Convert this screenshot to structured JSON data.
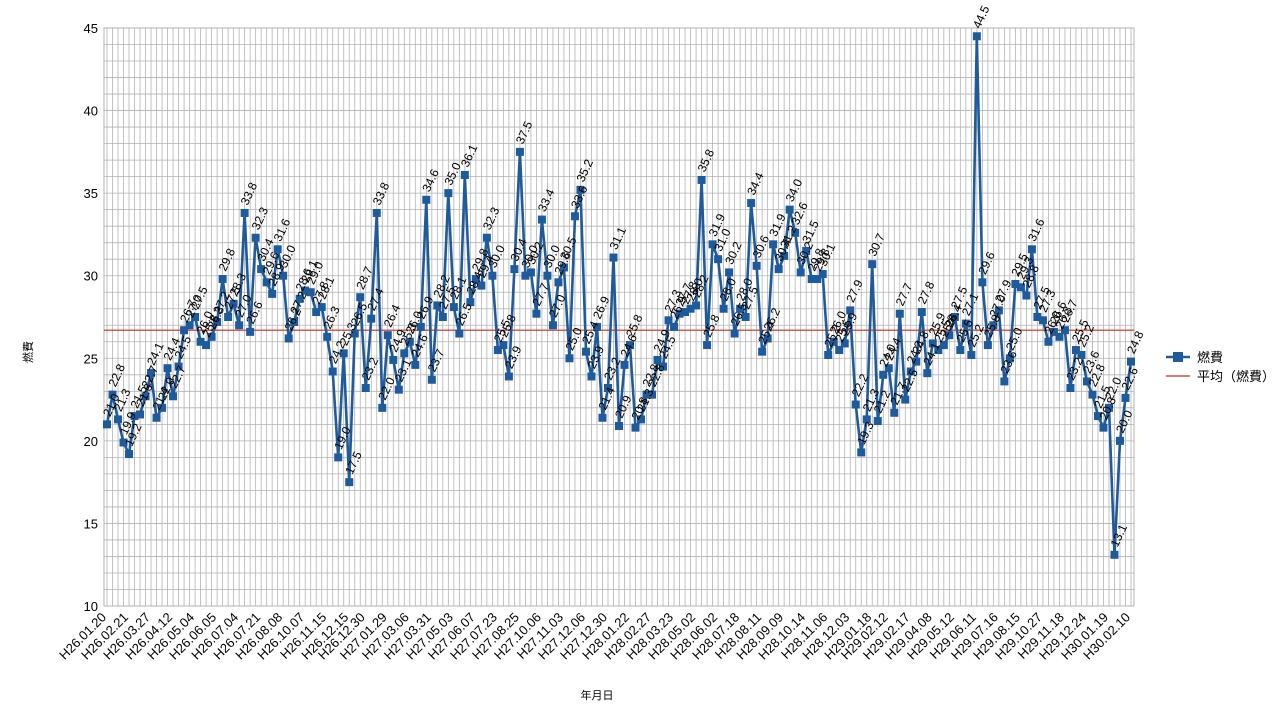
{
  "chart_data": {
    "type": "line",
    "xlabel": "年月日",
    "ylabel": "燃費",
    "ylim": [
      10,
      45
    ],
    "yticks": [
      10,
      15,
      20,
      25,
      30,
      35,
      40,
      45
    ],
    "grid": true,
    "legend_position": "right",
    "x_tick_labels": [
      "H26.01.20",
      "H26.02.21",
      "H26.03.27",
      "H26.04.12",
      "H26.05.04",
      "H26.06.05",
      "H26.07.04",
      "H26.07.21",
      "H26.08.08",
      "H26.10.07",
      "H26.11.15",
      "H26.12.15",
      "H26.12.30",
      "H27.01.29",
      "H27.03.06",
      "H27.03.31",
      "H27.05.03",
      "H27.06.07",
      "H27.07.23",
      "H27.08.25",
      "H27.10.06",
      "H27.11.03",
      "H27.12.06",
      "H27.12.30",
      "H28.01.22",
      "H28.02.27",
      "H28.03.23",
      "H28.05.02",
      "H28.06.02",
      "H28.07.18",
      "H28.08.11",
      "H28.09.09",
      "H28.10.14",
      "H28.11.06",
      "H28.12.03",
      "H29.01.18",
      "H29.02.12",
      "H29.02.17",
      "H29.04.08",
      "H29.05.12",
      "H29.06.11",
      "H29.07.16",
      "H29.08.15",
      "H29.10.27",
      "H29.11.18",
      "H29.12.24",
      "H30.01.19",
      "H30.02.10"
    ],
    "series": [
      {
        "name": "燃費",
        "color": "#1f5b9a",
        "marker": "square",
        "values": [
          21.0,
          22.8,
          21.3,
          19.9,
          19.2,
          21.5,
          21.6,
          22.7,
          24.1,
          21.4,
          22.0,
          24.4,
          22.7,
          24.5,
          26.7,
          27.0,
          27.5,
          26.0,
          25.8,
          26.3,
          27.2,
          29.8,
          27.5,
          28.3,
          27.0,
          33.8,
          26.6,
          32.3,
          30.4,
          29.6,
          28.9,
          31.6,
          30.0,
          26.2,
          27.2,
          28.6,
          29.1,
          29.0,
          27.8,
          28.1,
          26.3,
          24.2,
          19.0,
          25.3,
          17.5,
          26.5,
          28.7,
          23.2,
          27.4,
          33.8,
          22.0,
          26.4,
          24.9,
          23.1,
          25.3,
          26.0,
          24.6,
          26.9,
          34.6,
          23.7,
          28.2,
          27.5,
          35.0,
          28.1,
          26.5,
          36.1,
          28.4,
          29.8,
          29.4,
          32.3,
          30.0,
          25.5,
          25.8,
          23.9,
          30.4,
          37.5,
          30.0,
          30.2,
          27.7,
          33.4,
          30.0,
          27.0,
          29.6,
          30.5,
          25.0,
          33.6,
          35.2,
          25.4,
          23.9,
          26.9,
          21.4,
          23.2,
          31.1,
          20.9,
          24.6,
          25.8,
          20.8,
          21.3,
          22.8,
          22.8,
          24.9,
          24.5,
          27.3,
          26.9,
          27.7,
          27.8,
          28.0,
          28.2,
          35.8,
          25.8,
          31.9,
          31.0,
          28.0,
          30.2,
          26.5,
          28.0,
          27.5,
          34.4,
          30.6,
          25.4,
          26.2,
          31.9,
          30.4,
          31.2,
          34.0,
          32.6,
          30.2,
          31.5,
          29.8,
          29.8,
          30.1,
          25.2,
          26.0,
          25.5,
          25.9,
          27.9,
          22.2,
          19.3,
          21.3,
          30.7,
          21.2,
          24.0,
          24.4,
          21.7,
          27.7,
          22.5,
          24.2,
          24.8,
          27.8,
          24.1,
          25.9,
          25.5,
          25.8,
          26.4,
          27.5,
          25.5,
          27.1,
          25.2,
          44.5,
          29.6,
          25.8,
          27.0,
          27.9,
          23.6,
          25.0,
          29.5,
          29.3,
          28.8,
          31.6,
          27.5,
          27.3,
          26.0,
          26.6,
          26.3,
          26.7,
          23.2,
          25.5,
          25.2,
          23.6,
          22.8,
          21.5,
          20.8,
          22.0,
          13.1,
          20.0,
          22.6,
          24.8
        ]
      },
      {
        "name": "平均（燃費）",
        "color": "#cc2a1e",
        "values": [
          26.7
        ]
      }
    ]
  }
}
